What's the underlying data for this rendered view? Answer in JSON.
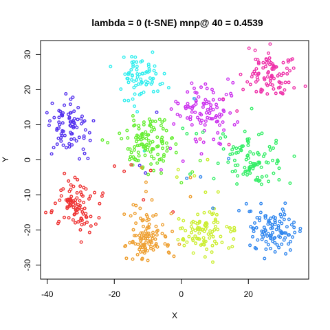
{
  "chart_data": {
    "type": "scatter",
    "title": "lambda = 0 (t-SNE) mnp@ 40 = 0.4539",
    "xlabel": "X",
    "ylabel": "Y",
    "xlim": [
      -42,
      38
    ],
    "ylim": [
      -34,
      34
    ],
    "x_ticks": [
      -40,
      -20,
      0,
      20
    ],
    "y_ticks": [
      -30,
      -20,
      -10,
      0,
      10,
      20,
      30
    ],
    "grid": false,
    "legend": "none",
    "marker": "open-circle",
    "series": [
      {
        "name": "cluster-magenta-top-center",
        "color": "#CC33EE",
        "center": [
          7,
          15
        ],
        "spread": [
          5.5,
          5.5
        ],
        "n": 100
      },
      {
        "name": "cluster-pink-top-right",
        "color": "#EE33AA",
        "center": [
          27,
          24
        ],
        "spread": [
          5,
          4.5
        ],
        "n": 95
      },
      {
        "name": "cluster-cyan-top",
        "color": "#33EEEE",
        "center": [
          -12,
          24
        ],
        "spread": [
          5,
          4.5
        ],
        "n": 75
      },
      {
        "name": "cluster-blue-left",
        "color": "#5533EE",
        "center": [
          -33,
          9
        ],
        "spread": [
          4,
          5
        ],
        "n": 85
      },
      {
        "name": "cluster-green-center",
        "color": "#66EE33",
        "center": [
          -10,
          5
        ],
        "spread": [
          5.5,
          5
        ],
        "n": 120
      },
      {
        "name": "cluster-green-right",
        "color": "#33EE66",
        "center": [
          22,
          0
        ],
        "spread": [
          5.5,
          5
        ],
        "n": 100
      },
      {
        "name": "cluster-red-left",
        "color": "#EE3333",
        "center": [
          -31,
          -13
        ],
        "spread": [
          4.5,
          4.5
        ],
        "n": 100
      },
      {
        "name": "cluster-orange-bottom",
        "color": "#EEA033",
        "center": [
          -10,
          -22
        ],
        "spread": [
          4.5,
          5
        ],
        "n": 110
      },
      {
        "name": "cluster-yellow-bottom",
        "color": "#CCEE33",
        "center": [
          7,
          -21
        ],
        "spread": [
          5.5,
          4
        ],
        "n": 100
      },
      {
        "name": "cluster-blue-bottom-right",
        "color": "#3388EE",
        "center": [
          28,
          -20
        ],
        "spread": [
          5,
          4.5
        ],
        "n": 110
      }
    ]
  }
}
